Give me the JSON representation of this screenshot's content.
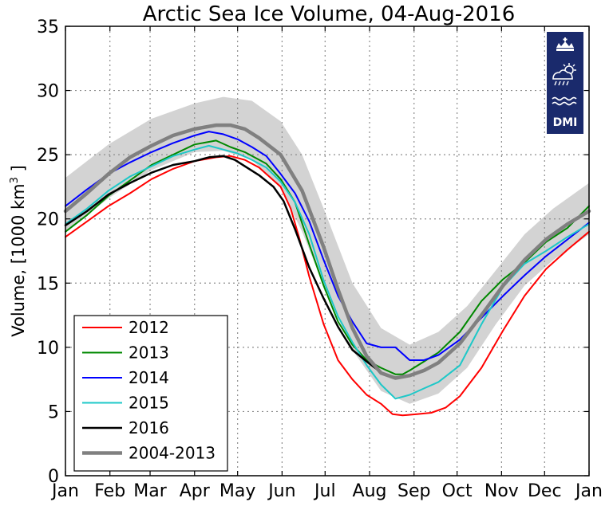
{
  "chart_data": {
    "type": "line",
    "title": "Arctic Sea Ice Volume, 04-Aug-2016",
    "ylabel": "Volume, [1000 km³ ]",
    "ylabel_main": "Volume, [1000 km",
    "ylabel_sup": "3",
    "ylabel_end": " ]",
    "xlabel": "",
    "ylim": [
      0,
      35
    ],
    "yticks": [
      "0",
      "5",
      "10",
      "15",
      "20",
      "25",
      "30",
      "35"
    ],
    "xlim": [
      0,
      365
    ],
    "xtick_positions": [
      0,
      31,
      59,
      90,
      120,
      151,
      181,
      212,
      243,
      273,
      304,
      334,
      365
    ],
    "xtick_labels": [
      "Jan",
      "Feb",
      "Mar",
      "Apr",
      "May",
      "Jun",
      "Jul",
      "Aug",
      "Sep",
      "Oct",
      "Nov",
      "Dec",
      "Jan"
    ],
    "grid": true,
    "legend_position": "bottom-left",
    "logo_text": "DMI",
    "band": {
      "x": [
        0,
        30,
        60,
        90,
        110,
        130,
        150,
        165,
        180,
        200,
        220,
        240,
        260,
        280,
        300,
        320,
        340,
        365
      ],
      "upper": [
        23.2,
        25.8,
        27.8,
        29.0,
        29.5,
        29.2,
        27.6,
        25.0,
        20.8,
        15.0,
        11.5,
        10.2,
        11.2,
        13.2,
        16.0,
        18.8,
        20.8,
        22.8
      ],
      "lower": [
        19.0,
        21.6,
        23.8,
        25.2,
        25.3,
        24.6,
        22.4,
        19.0,
        14.8,
        9.8,
        6.6,
        5.6,
        6.4,
        8.4,
        11.8,
        14.8,
        16.8,
        18.8
      ]
    },
    "series": [
      {
        "name": "2012",
        "color": "#ff0000",
        "width": 2,
        "x": [
          0,
          15,
          30,
          45,
          60,
          75,
          90,
          105,
          115,
          125,
          135,
          150,
          157,
          163,
          170,
          180,
          190,
          200,
          210,
          220,
          228,
          235,
          245,
          255,
          265,
          275,
          290,
          305,
          320,
          335,
          350,
          365
        ],
        "y": [
          18.6,
          19.8,
          21.0,
          22.0,
          23.1,
          23.9,
          24.5,
          24.8,
          24.9,
          24.6,
          24.0,
          22.5,
          20.8,
          18.5,
          15.5,
          11.8,
          9.0,
          7.5,
          6.3,
          5.6,
          4.8,
          4.7,
          4.8,
          4.9,
          5.3,
          6.2,
          8.4,
          11.3,
          14.0,
          16.1,
          17.6,
          19.0
        ]
      },
      {
        "name": "2013",
        "color": "#008800",
        "width": 2,
        "x": [
          0,
          15,
          30,
          45,
          60,
          75,
          90,
          105,
          115,
          125,
          140,
          150,
          160,
          170,
          180,
          190,
          200,
          210,
          220,
          230,
          235,
          240,
          250,
          260,
          275,
          290,
          305,
          320,
          335,
          350,
          365
        ],
        "y": [
          19.0,
          20.3,
          21.8,
          23.0,
          24.2,
          25.0,
          25.8,
          26.1,
          25.6,
          25.2,
          24.3,
          23.1,
          21.3,
          18.0,
          14.8,
          12.0,
          10.2,
          9.0,
          8.4,
          7.9,
          7.9,
          8.2,
          8.9,
          9.6,
          11.2,
          13.6,
          15.3,
          16.6,
          18.2,
          19.3,
          21.0
        ]
      },
      {
        "name": "2014",
        "color": "#0000ff",
        "width": 2,
        "x": [
          0,
          15,
          30,
          45,
          60,
          75,
          90,
          100,
          110,
          120,
          130,
          140,
          150,
          160,
          170,
          180,
          190,
          200,
          210,
          220,
          230,
          240,
          250,
          260,
          275,
          290,
          305,
          320,
          335,
          350,
          365
        ],
        "y": [
          21.0,
          22.3,
          23.5,
          24.4,
          25.2,
          25.9,
          26.5,
          26.8,
          26.6,
          26.2,
          25.6,
          24.9,
          23.5,
          22.0,
          19.8,
          16.8,
          14.0,
          12.0,
          10.3,
          10.0,
          10.0,
          9.0,
          9.0,
          9.4,
          10.6,
          12.3,
          14.0,
          15.6,
          17.1,
          18.4,
          19.7
        ]
      },
      {
        "name": "2015",
        "color": "#1ec8c8",
        "width": 2,
        "x": [
          0,
          15,
          30,
          45,
          60,
          75,
          90,
          100,
          110,
          120,
          130,
          140,
          150,
          160,
          170,
          180,
          190,
          200,
          210,
          220,
          230,
          240,
          250,
          260,
          275,
          290,
          305,
          320,
          335,
          350,
          365
        ],
        "y": [
          19.6,
          20.8,
          22.2,
          23.3,
          24.1,
          24.9,
          25.4,
          25.7,
          25.4,
          25.1,
          24.6,
          24.0,
          22.9,
          21.3,
          18.8,
          15.2,
          12.4,
          10.4,
          8.6,
          7.1,
          6.0,
          6.3,
          6.8,
          7.3,
          8.6,
          11.8,
          14.7,
          16.5,
          17.5,
          18.6,
          19.6
        ]
      },
      {
        "name": "2016",
        "color": "#000000",
        "width": 2.5,
        "x": [
          0,
          15,
          30,
          45,
          60,
          75,
          90,
          100,
          110,
          118,
          125,
          135,
          145,
          152,
          160,
          170,
          180,
          190,
          200,
          210,
          217
        ],
        "y": [
          19.5,
          20.6,
          21.9,
          22.8,
          23.6,
          24.2,
          24.5,
          24.8,
          24.9,
          24.6,
          24.1,
          23.4,
          22.5,
          21.4,
          19.2,
          16.2,
          13.8,
          11.6,
          9.8,
          8.9,
          8.3
        ]
      },
      {
        "name": "2004-2013",
        "color": "#808080",
        "width": 4.5,
        "x": [
          0,
          15,
          30,
          45,
          60,
          75,
          90,
          105,
          115,
          125,
          135,
          150,
          165,
          180,
          190,
          200,
          210,
          220,
          230,
          240,
          250,
          260,
          275,
          290,
          305,
          320,
          335,
          350,
          365
        ],
        "y": [
          20.6,
          22.0,
          23.5,
          24.8,
          25.7,
          26.5,
          27.0,
          27.3,
          27.3,
          27.0,
          26.3,
          25.0,
          22.2,
          17.8,
          14.5,
          11.5,
          9.3,
          8.0,
          7.6,
          7.8,
          8.2,
          8.8,
          10.3,
          12.5,
          14.8,
          16.8,
          18.4,
          19.6,
          20.6
        ]
      }
    ]
  }
}
